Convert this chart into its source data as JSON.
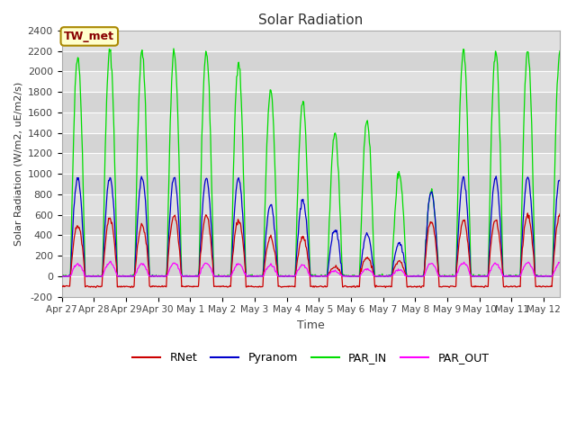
{
  "title": "Solar Radiation",
  "ylabel": "Solar Radiation (W/m2, uE/m2/s)",
  "xlabel": "Time",
  "ylim": [
    -200,
    2400
  ],
  "yticks": [
    -200,
    0,
    200,
    400,
    600,
    800,
    1000,
    1200,
    1400,
    1600,
    1800,
    2000,
    2200,
    2400
  ],
  "station_label": "TW_met",
  "legend_entries": [
    "RNet",
    "Pyranom",
    "PAR_IN",
    "PAR_OUT"
  ],
  "line_colors": {
    "RNet": "#cc0000",
    "Pyranom": "#0000cc",
    "PAR_IN": "#00dd00",
    "PAR_OUT": "#ff00ff"
  },
  "fig_bg_color": "#f0f0f0",
  "plot_bg_color": "#e8e8e8",
  "stripe_color1": "#e0e0e0",
  "stripe_color2": "#d0d0d0",
  "num_days": 15.5,
  "tick_labels": [
    "Apr 27",
    "Apr 28",
    "Apr 29",
    "Apr 30",
    "May 1",
    "May 2",
    "May 3",
    "May 4",
    "May 5",
    "May 6",
    "May 7",
    "May 8",
    "May 9",
    "May 10",
    "May 11",
    "May 12"
  ],
  "par_in_peaks": [
    2150,
    2200,
    2190,
    2190,
    2190,
    2100,
    1800,
    1700,
    1400,
    1530,
    1010,
    830,
    2210,
    2200,
    2200,
    2200
  ],
  "pyranom_peaks": [
    950,
    960,
    960,
    960,
    950,
    950,
    700,
    740,
    460,
    410,
    330,
    820,
    960,
    960,
    960,
    960
  ],
  "rnet_peaks": [
    500,
    570,
    500,
    590,
    590,
    550,
    380,
    380,
    90,
    180,
    140,
    540,
    550,
    550,
    600,
    600
  ],
  "par_out_peaks": [
    120,
    130,
    120,
    130,
    130,
    120,
    110,
    110,
    50,
    70,
    60,
    130,
    130,
    130,
    130,
    130
  ],
  "rnet_neg": -100,
  "day_start": 0.27,
  "day_end": 0.73
}
